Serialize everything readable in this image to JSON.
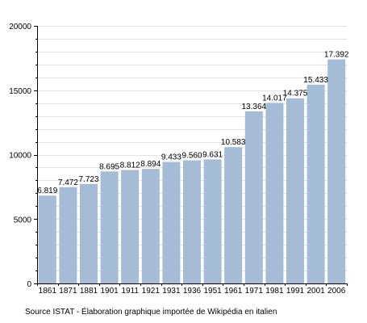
{
  "chart_data": {
    "type": "bar",
    "categories": [
      "1861",
      "1871",
      "1881",
      "1901",
      "1911",
      "1921",
      "1931",
      "1936",
      "1951",
      "1961",
      "1971",
      "1981",
      "1991",
      "2001",
      "2006"
    ],
    "values": [
      6819,
      7472,
      7723,
      8695,
      8812,
      8894,
      9433,
      9560,
      9631,
      10583,
      13364,
      14017,
      14375,
      15433,
      17392
    ],
    "value_labels": [
      "6.819",
      "7.472",
      "7.723",
      "8.695",
      "8.812",
      "8.894",
      "9.433",
      "9.560",
      "9.631",
      "10.583",
      "13.364",
      "14.017",
      "14.375",
      "15.433",
      "17.392"
    ],
    "y_ticks": [
      0,
      5000,
      10000,
      15000,
      20000
    ],
    "y_tick_labels": [
      "0",
      "5000",
      "10000",
      "15000",
      "20000"
    ],
    "ylim": [
      0,
      20000
    ],
    "grid": true,
    "bar_color": "#a4bcd5",
    "grid_color": "#e2e2e2"
  },
  "source_text": "Source ISTAT - Élaboration graphique importée de Wikipédia en italien"
}
